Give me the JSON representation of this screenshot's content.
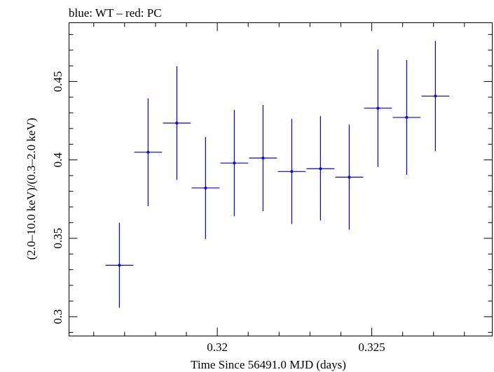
{
  "chart_data": {
    "type": "scatter",
    "title": "blue: WT – red: PC",
    "xlabel": "Time Since 56491.0 MJD (days)",
    "ylabel": "(2.0–10.0 keV)/(0.3–2.0 keV)",
    "xlim": [
      0.3152,
      0.3289
    ],
    "ylim": [
      0.2877,
      0.4875
    ],
    "x_ticks": [
      0.32,
      0.325
    ],
    "x_tick_labels": [
      "0.32",
      "0.325"
    ],
    "y_ticks": [
      0.3,
      0.35,
      0.4,
      0.45
    ],
    "y_tick_labels": [
      "0.3",
      "0.35",
      "0.4",
      "0.45"
    ],
    "grid": false,
    "colors": {
      "WT": "#0000ff",
      "PC": "#ff0000"
    },
    "series": [
      {
        "name": "WT",
        "color": "#0000ff",
        "points": [
          {
            "x": 0.31683,
            "xerr": 0.00045,
            "y": 0.3328,
            "yerr_low": 0.0271,
            "yerr_high": 0.0272
          },
          {
            "x": 0.31776,
            "xerr": 0.00045,
            "y": 0.4049,
            "yerr_low": 0.0344,
            "yerr_high": 0.0344
          },
          {
            "x": 0.31869,
            "xerr": 0.00045,
            "y": 0.4235,
            "yerr_low": 0.0362,
            "yerr_high": 0.0362
          },
          {
            "x": 0.31962,
            "xerr": 0.00045,
            "y": 0.3821,
            "yerr_low": 0.0326,
            "yerr_high": 0.0326
          },
          {
            "x": 0.32055,
            "xerr": 0.00045,
            "y": 0.398,
            "yerr_low": 0.0339,
            "yerr_high": 0.0339
          },
          {
            "x": 0.32148,
            "xerr": 0.00045,
            "y": 0.4012,
            "yerr_low": 0.0339,
            "yerr_high": 0.0339
          },
          {
            "x": 0.32241,
            "xerr": 0.00045,
            "y": 0.3926,
            "yerr_low": 0.0335,
            "yerr_high": 0.0335
          },
          {
            "x": 0.32334,
            "xerr": 0.00045,
            "y": 0.3944,
            "yerr_low": 0.033,
            "yerr_high": 0.0335
          },
          {
            "x": 0.32427,
            "xerr": 0.00045,
            "y": 0.389,
            "yerr_low": 0.0335,
            "yerr_high": 0.0335
          },
          {
            "x": 0.3252,
            "xerr": 0.00045,
            "y": 0.433,
            "yerr_low": 0.0375,
            "yerr_high": 0.0375
          },
          {
            "x": 0.32613,
            "xerr": 0.00045,
            "y": 0.4271,
            "yerr_low": 0.0366,
            "yerr_high": 0.0366
          },
          {
            "x": 0.32706,
            "xerr": 0.00045,
            "y": 0.4407,
            "yerr_low": 0.0352,
            "yerr_high": 0.0352
          }
        ]
      }
    ]
  }
}
